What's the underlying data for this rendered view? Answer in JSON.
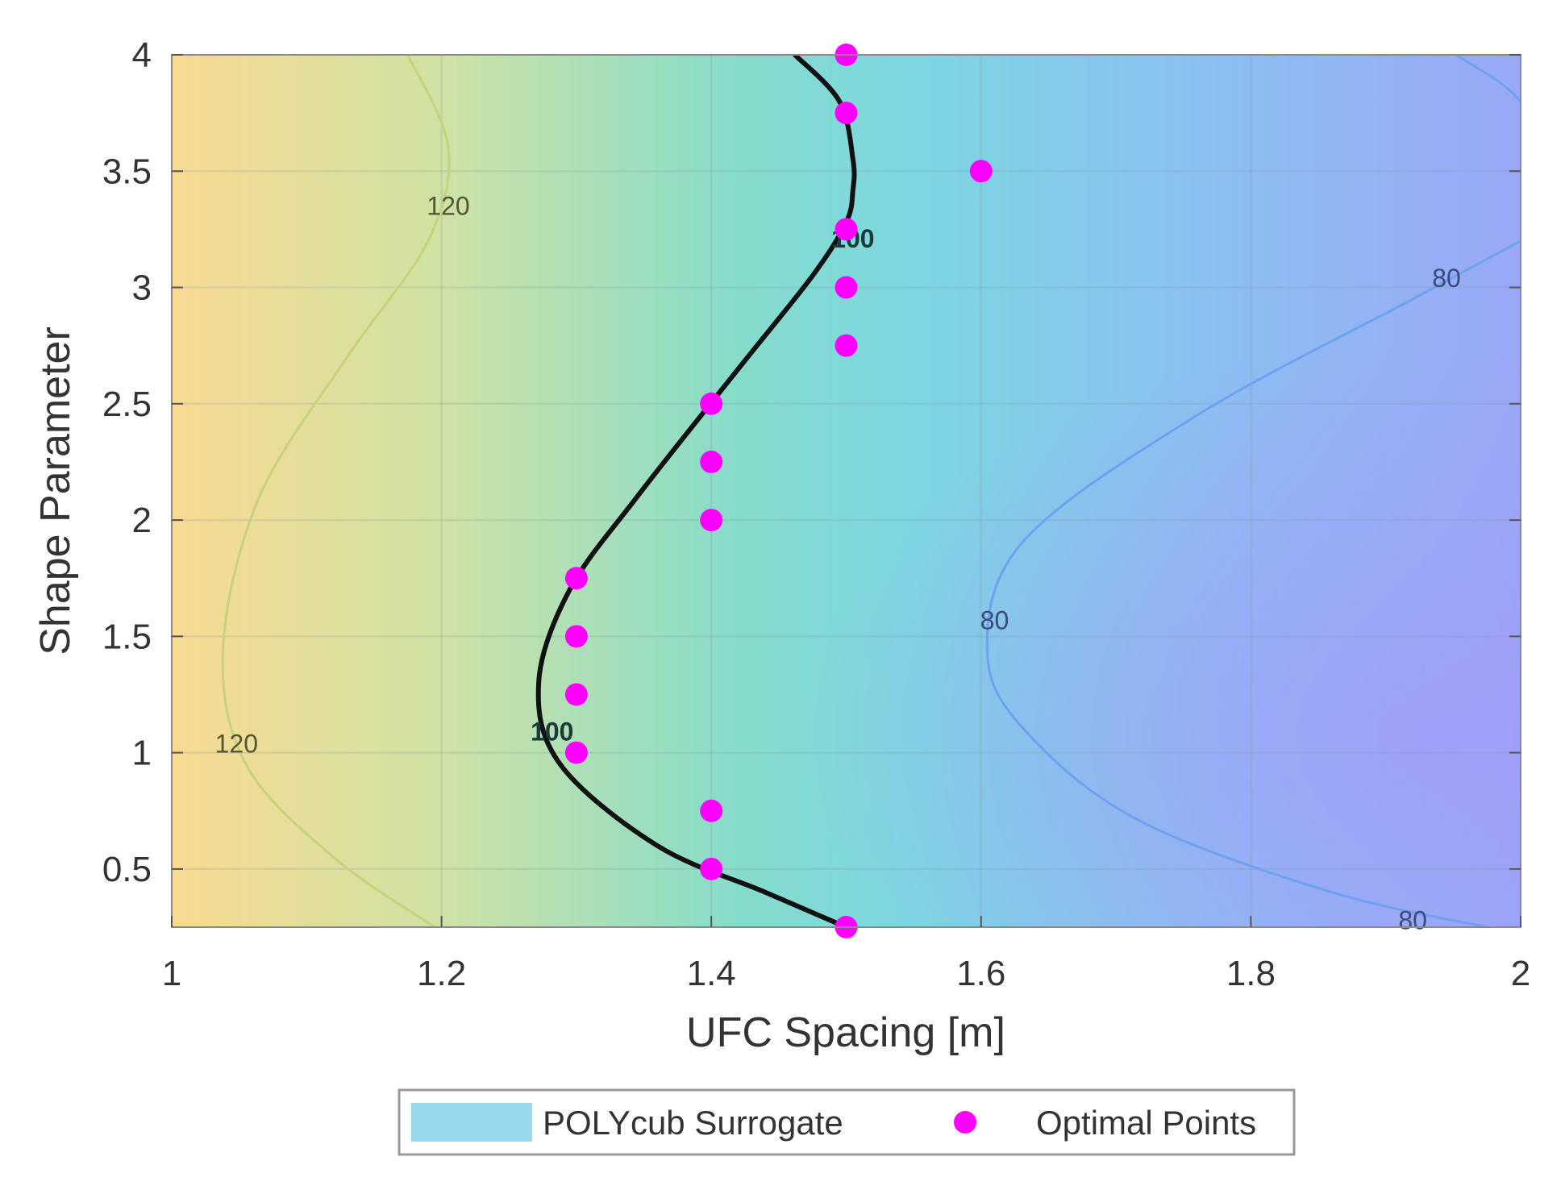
{
  "chart_data": {
    "type": "contour",
    "xlabel": "UFC Spacing [m]",
    "ylabel": "Shape Parameter",
    "xlim": [
      1,
      2
    ],
    "ylim": [
      0.25,
      4
    ],
    "x_ticks": [
      1,
      1.2,
      1.4,
      1.6,
      1.8,
      2
    ],
    "y_ticks": [
      0.5,
      1,
      1.5,
      2,
      2.5,
      3,
      3.5,
      4
    ],
    "x_tick_labels": [
      "1",
      "1.2",
      "1.4",
      "1.6",
      "1.8",
      "2"
    ],
    "y_tick_labels": [
      "0.5",
      "1",
      "1.5",
      "2",
      "2.5",
      "3",
      "3.5",
      "4"
    ],
    "grid": true,
    "colors": {
      "high": "#f8dc90",
      "mid": "#7dd6e2",
      "low": "#a6a2f8",
      "contour_120": "#c8d27a",
      "contour_80": "#6ea2f0",
      "contour_100": "#111111",
      "optimal_points": "#ff00ff",
      "legend_patch": "#9ad8ee"
    },
    "contours": [
      {
        "level": 120,
        "label_positions": [
          [
            1.205,
            3.35
          ],
          [
            1.048,
            1.04
          ]
        ],
        "points": [
          [
            1.175,
            4.0
          ],
          [
            1.205,
            3.6
          ],
          [
            1.19,
            3.2
          ],
          [
            1.13,
            2.7
          ],
          [
            1.065,
            2.1
          ],
          [
            1.038,
            1.45
          ],
          [
            1.055,
            0.95
          ],
          [
            1.12,
            0.55
          ],
          [
            1.195,
            0.25
          ]
        ]
      },
      {
        "level": 100,
        "label_positions": [
          [
            1.505,
            3.22
          ],
          [
            1.282,
            1.1
          ]
        ],
        "points": [
          [
            1.462,
            4.0
          ],
          [
            1.495,
            3.8
          ],
          [
            1.505,
            3.55
          ],
          [
            1.505,
            3.42
          ],
          [
            1.5,
            3.28
          ],
          [
            1.475,
            3.05
          ],
          [
            1.42,
            2.65
          ],
          [
            1.345,
            2.1
          ],
          [
            1.295,
            1.7
          ],
          [
            1.272,
            1.3
          ],
          [
            1.288,
            0.95
          ],
          [
            1.36,
            0.6
          ],
          [
            1.44,
            0.4
          ],
          [
            1.5,
            0.25
          ]
        ]
      },
      {
        "level": 80,
        "label_positions": [
          [
            1.945,
            3.04
          ],
          [
            1.61,
            1.57
          ],
          [
            1.92,
            0.28
          ]
        ],
        "points": [
          [
            1.975,
            0.25
          ],
          [
            1.86,
            0.4
          ],
          [
            1.72,
            0.7
          ],
          [
            1.64,
            1.05
          ],
          [
            1.605,
            1.4
          ],
          [
            1.63,
            1.9
          ],
          [
            1.76,
            2.45
          ],
          [
            1.92,
            2.95
          ],
          [
            2.0,
            3.2
          ]
        ]
      },
      {
        "level": 80,
        "label_positions": [],
        "points": [
          [
            1.952,
            4.0
          ],
          [
            1.985,
            3.88
          ],
          [
            2.0,
            3.8
          ]
        ]
      }
    ],
    "series": [
      {
        "name": "Optimal Points",
        "type": "scatter",
        "points": [
          [
            1.5,
            4.0
          ],
          [
            1.5,
            3.75
          ],
          [
            1.6,
            3.5
          ],
          [
            1.5,
            3.25
          ],
          [
            1.5,
            3.0
          ],
          [
            1.5,
            2.75
          ],
          [
            1.4,
            2.5
          ],
          [
            1.4,
            2.25
          ],
          [
            1.4,
            2.0
          ],
          [
            1.3,
            1.75
          ],
          [
            1.3,
            1.5
          ],
          [
            1.3,
            1.25
          ],
          [
            1.3,
            1.0
          ],
          [
            1.4,
            0.75
          ],
          [
            1.4,
            0.5
          ],
          [
            1.5,
            0.25
          ]
        ]
      }
    ],
    "legend": {
      "position": "bottom",
      "entries": [
        {
          "label": "POLYcub Surrogate",
          "kind": "patch"
        },
        {
          "label": "Optimal Points",
          "kind": "marker"
        }
      ]
    }
  }
}
